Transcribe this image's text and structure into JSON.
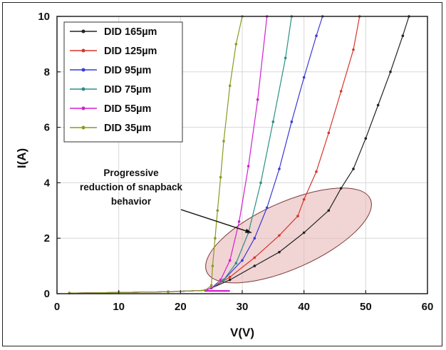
{
  "chart_data": {
    "type": "line",
    "xlabel": "V(V)",
    "ylabel": "I(A)",
    "xlim": [
      0,
      60
    ],
    "ylim": [
      0,
      10
    ],
    "xticks": [
      "0",
      "10",
      "20",
      "30",
      "40",
      "50",
      "60"
    ],
    "yticks": [
      "0",
      "2",
      "4",
      "6",
      "8",
      "10"
    ],
    "grid": true,
    "legend_position": "top-left",
    "series": [
      {
        "name": "DID 165µm",
        "color": "#222222",
        "marker": "dot",
        "points": [
          [
            2,
            0.02
          ],
          [
            10,
            0.04
          ],
          [
            18,
            0.07
          ],
          [
            24,
            0.12
          ],
          [
            25,
            0.2
          ],
          [
            28,
            0.5
          ],
          [
            32,
            1.0
          ],
          [
            36,
            1.5
          ],
          [
            40,
            2.2
          ],
          [
            44,
            3.0
          ],
          [
            46,
            3.8
          ],
          [
            48,
            4.5
          ],
          [
            50,
            5.6
          ],
          [
            52,
            6.8
          ],
          [
            54,
            8.0
          ],
          [
            56,
            9.3
          ],
          [
            57,
            10
          ]
        ]
      },
      {
        "name": "DID 125µm",
        "color": "#d9342b",
        "marker": "dot",
        "points": [
          [
            2,
            0.02
          ],
          [
            10,
            0.04
          ],
          [
            18,
            0.07
          ],
          [
            24,
            0.12
          ],
          [
            25,
            0.2
          ],
          [
            28,
            0.6
          ],
          [
            32,
            1.3
          ],
          [
            36,
            2.1
          ],
          [
            39,
            2.8
          ],
          [
            40,
            3.4
          ],
          [
            42,
            4.4
          ],
          [
            44,
            5.8
          ],
          [
            46,
            7.3
          ],
          [
            48,
            8.8
          ],
          [
            49,
            10
          ]
        ]
      },
      {
        "name": "DID 95µm",
        "color": "#3a3ad6",
        "marker": "dot",
        "points": [
          [
            2,
            0.02
          ],
          [
            10,
            0.04
          ],
          [
            18,
            0.07
          ],
          [
            24,
            0.12
          ],
          [
            25,
            0.2
          ],
          [
            27,
            0.5
          ],
          [
            30,
            1.2
          ],
          [
            32,
            2.0
          ],
          [
            34,
            3.1
          ],
          [
            36,
            4.5
          ],
          [
            38,
            6.2
          ],
          [
            40,
            7.8
          ],
          [
            42,
            9.3
          ],
          [
            43,
            10
          ]
        ]
      },
      {
        "name": "DID 75µm",
        "color": "#2a8f86",
        "marker": "dot",
        "points": [
          [
            2,
            0.02
          ],
          [
            10,
            0.04
          ],
          [
            18,
            0.07
          ],
          [
            24,
            0.12
          ],
          [
            25,
            0.2
          ],
          [
            27,
            0.5
          ],
          [
            29,
            1.1
          ],
          [
            31,
            2.2
          ],
          [
            33,
            4.0
          ],
          [
            35,
            6.2
          ],
          [
            37,
            8.5
          ],
          [
            38,
            10
          ]
        ]
      },
      {
        "name": "DID 55µm",
        "color": "#d21fd2",
        "marker": "dot",
        "points": [
          [
            2,
            0.02
          ],
          [
            10,
            0.04
          ],
          [
            18,
            0.07
          ],
          [
            24,
            0.12
          ],
          [
            25,
            0.2
          ],
          [
            26.5,
            0.5
          ],
          [
            28,
            1.2
          ],
          [
            29.5,
            2.6
          ],
          [
            31,
            4.6
          ],
          [
            32.5,
            7.0
          ],
          [
            34,
            10
          ]
        ]
      },
      {
        "name": "DID 35µm",
        "color": "#8a9a1e",
        "marker": "dot",
        "points": [
          [
            2,
            0.02
          ],
          [
            10,
            0.04
          ],
          [
            18,
            0.07
          ],
          [
            24,
            0.12
          ],
          [
            25,
            0.3
          ],
          [
            25.2,
            1.0
          ],
          [
            25.6,
            2.0
          ],
          [
            26,
            3.0
          ],
          [
            26.5,
            4.2
          ],
          [
            27,
            5.5
          ],
          [
            28,
            7.5
          ],
          [
            29,
            9.0
          ],
          [
            30,
            10
          ]
        ]
      }
    ],
    "tail": {
      "x_end": 28,
      "y": 0.1
    },
    "annotation": {
      "lines": [
        "Progressive",
        "reduction of snapback",
        "behavior"
      ],
      "arrow_target": [
        31.5,
        2.2
      ],
      "ellipse": {
        "cx": 37.5,
        "cy": 2.1,
        "rx": 14.5,
        "ry": 1.2,
        "angle_deg": -24,
        "fill": "#e7b7b7",
        "stroke": "#7a3a3a"
      }
    }
  }
}
